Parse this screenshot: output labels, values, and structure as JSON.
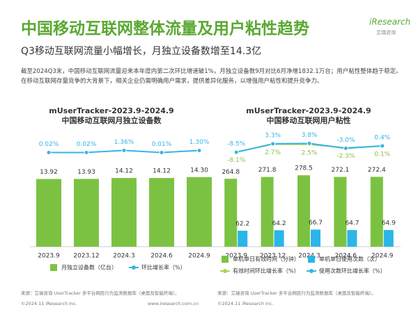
{
  "header": {
    "title": "中国移动互联网整体流量及用户粘性趋势",
    "logo": "iResearch",
    "logo_sub": "艾瑞咨询",
    "subtitle": "Q3移动互联网流量小幅增长，月独立设备数增至14.3亿",
    "paragraph": "截至2024Q3末，中国移动互联网流量迎来本年度内第二次环比增速破1%，月独立设备数9月对比6月净增1832.1万台；用户粘性整体趋于稳定。在移动互联网存量竞争的大背景下，相关企业仍需明确用户需求，提供差异化服务，以增强用户粘性和提升竞争力。"
  },
  "chart_data": [
    {
      "type": "bar",
      "title": "mUserTracker-2023.9-2024.9",
      "subtitle": "中国移动互联网月独立设备数",
      "categories": [
        "2023.9",
        "2023.12",
        "2024.3",
        "2024.6",
        "2024.9"
      ],
      "ylim": [
        0,
        20
      ],
      "y2lim": [
        -60,
        2
      ],
      "series": [
        {
          "name": "月独立设备数（亿台）",
          "color": "#7cc242",
          "values": [
            13.92,
            13.93,
            14.12,
            14.12,
            14.3
          ],
          "value_labels": [
            "13.92",
            "13.93",
            "14.12",
            "14.12",
            "14.30"
          ]
        },
        {
          "name": "环比增长率（%）",
          "color": "#36b3e6",
          "axis": "y2",
          "values": [
            0.02,
            0.02,
            1.36,
            0.01,
            1.3
          ],
          "value_labels": [
            "0.02%",
            "0.02%",
            "1.36%",
            "0.01%",
            "1.30%"
          ]
        }
      ]
    },
    {
      "type": "bar",
      "title": "mUserTracker-2023.9-2024.9",
      "subtitle": "中国移动互联网用户粘性",
      "categories": [
        "2023.9",
        "2023.12",
        "2024.3",
        "2024.6",
        "2024.9"
      ],
      "ylim": [
        0,
        420
      ],
      "y2lim": [
        -140,
        10
      ],
      "series": [
        {
          "name": "单机单日有效时间（分钟）",
          "color": "#7cc242",
          "values": [
            264.8,
            271.8,
            278.5,
            272.1,
            272.4
          ]
        },
        {
          "name": "单机单日使用次数（次）",
          "color": "#2bb5e8",
          "values": [
            62.2,
            64.2,
            66.7,
            64.7,
            64.9
          ]
        },
        {
          "name": "有效时间环比增长率（%）",
          "color": "#a8d25a",
          "axis": "y2",
          "values": [
            -8.1,
            2.7,
            2.5,
            -2.3,
            0.1
          ],
          "value_labels": [
            "-8.1%",
            "2.7%",
            "2.5%",
            "-2.3%",
            "0.1%"
          ]
        },
        {
          "name": "使用次数环比增长率（%）",
          "color": "#36b3e6",
          "axis": "y2",
          "values": [
            -8.5,
            3.3,
            3.8,
            -3.0,
            0.4
          ],
          "value_labels": [
            "-8.5%",
            "3.3%",
            "3.8%",
            "-3.0%",
            "0.4%"
          ]
        }
      ]
    }
  ],
  "footer": {
    "left_source": "来源：艾瑞咨询 UserTracker 多平台网民行为监测数据库（桌面及智能终端）。",
    "left_copyright": "©2024.11 iResearch Inc.",
    "left_url": "www.iresearch.com.cn",
    "right_source": "来源：艾瑞咨询 UserTracker 多平台网民行为监测数据库（桌面及智能终端）。",
    "right_copyright": "©2024.11 iResearch Inc."
  }
}
